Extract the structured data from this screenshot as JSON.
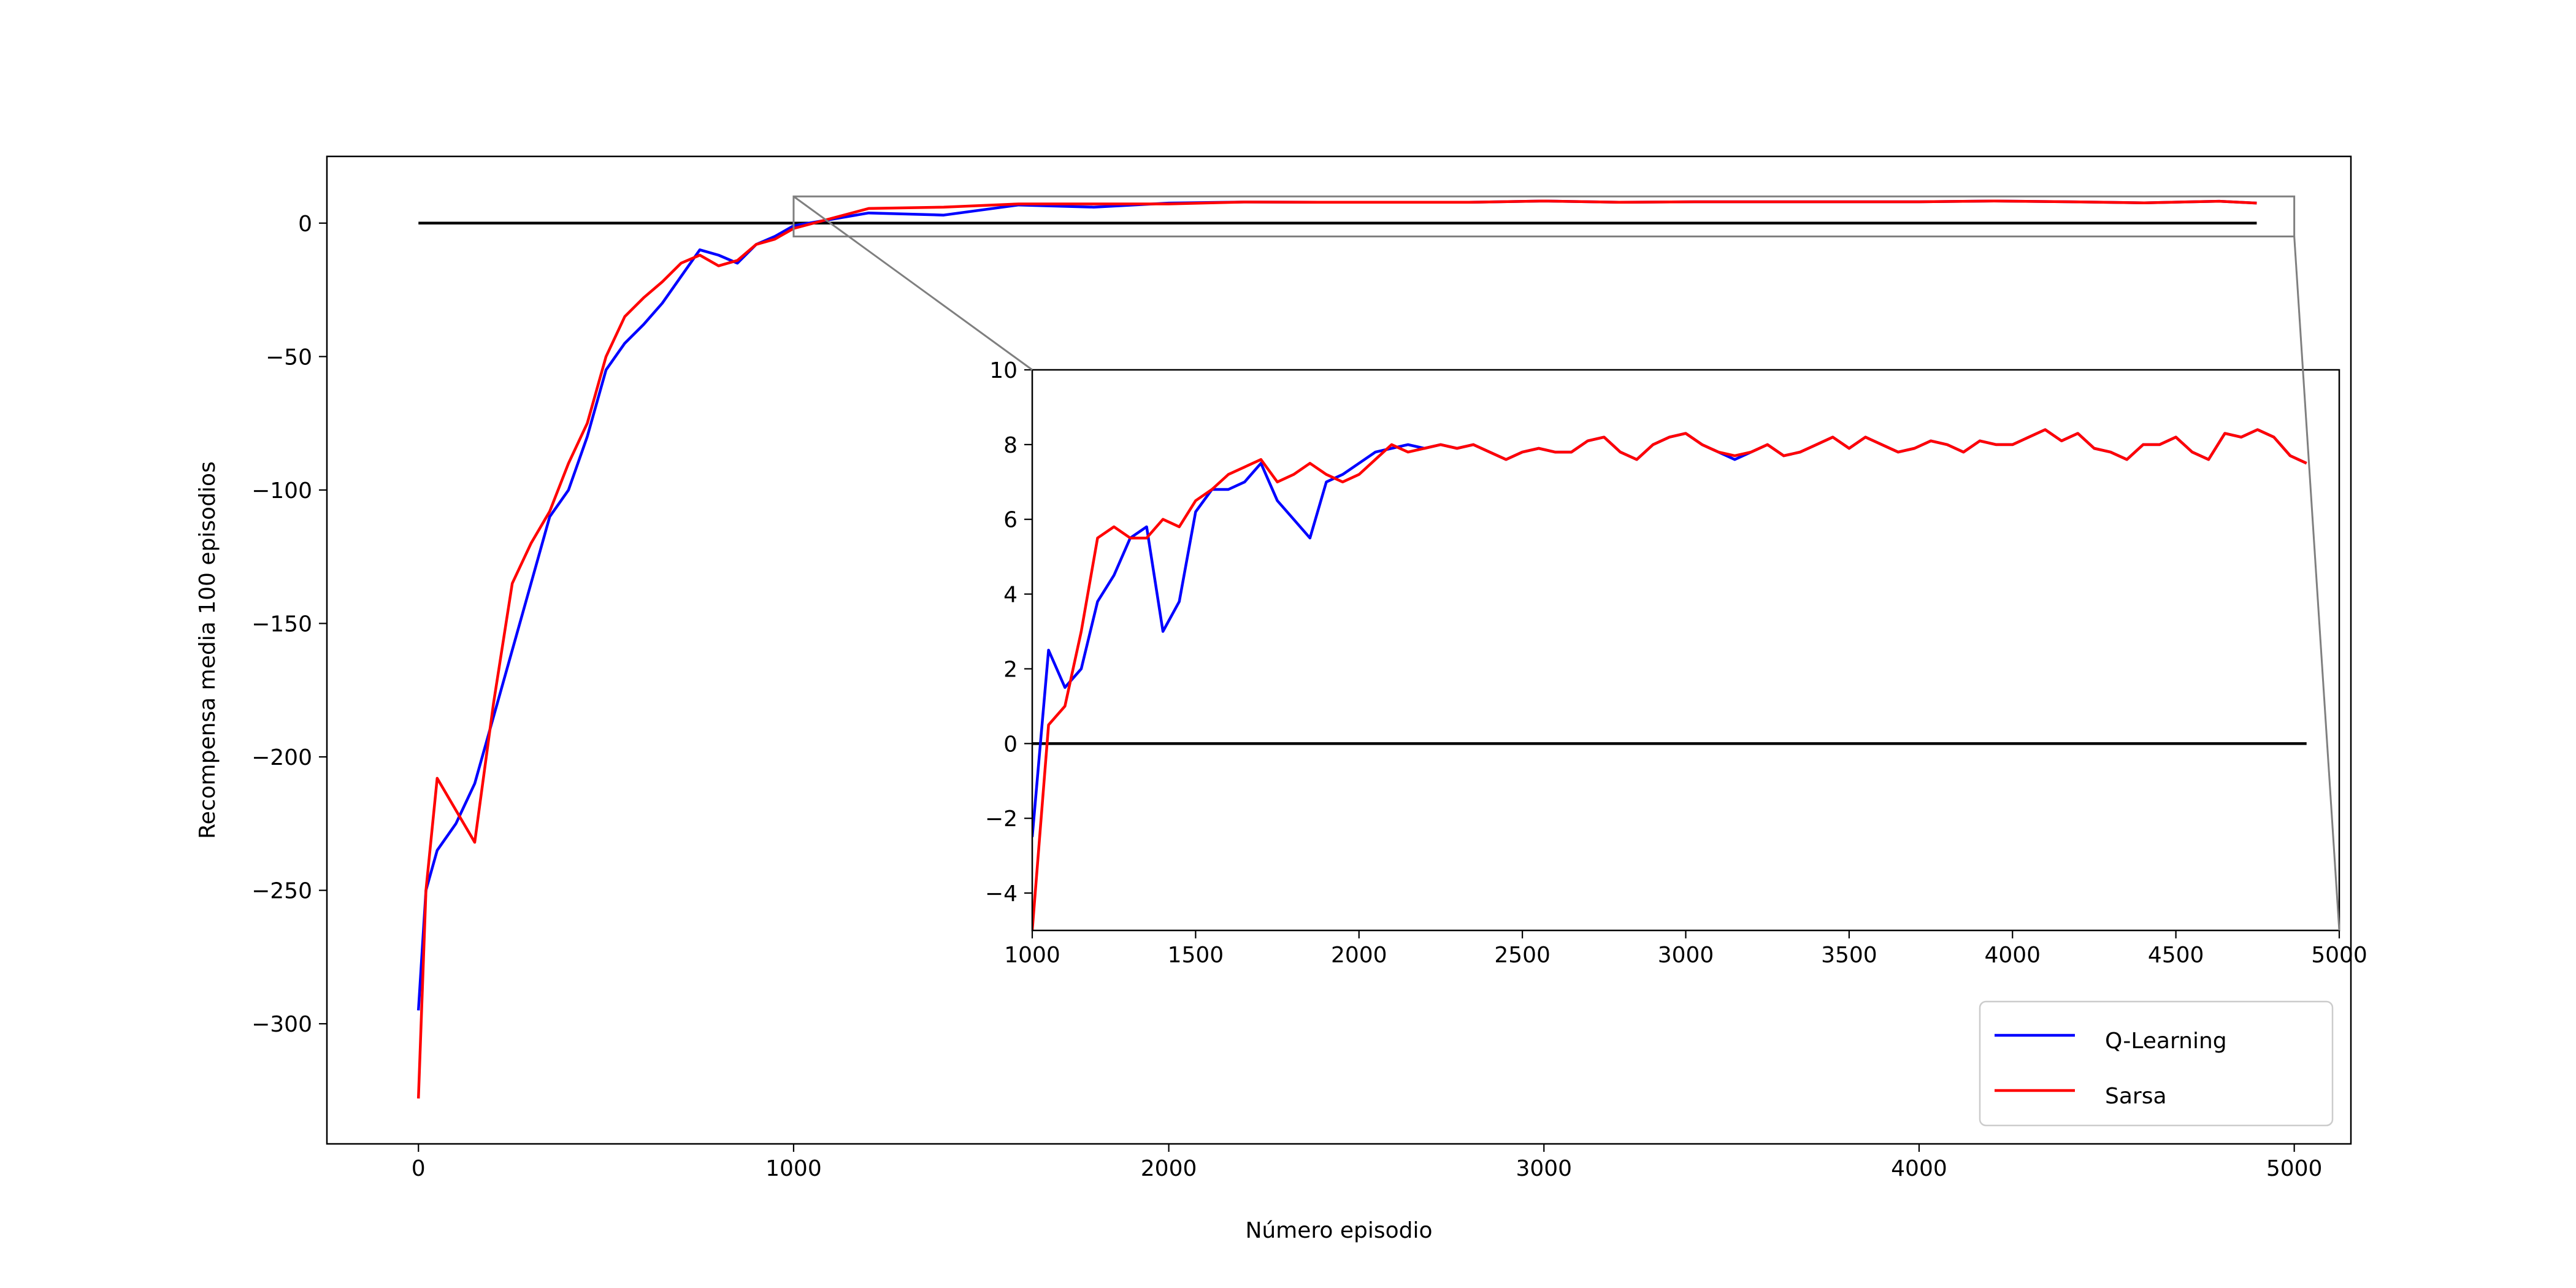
{
  "chart_data": [
    {
      "type": "line",
      "xlabel": "Número episodio",
      "ylabel": "Recompensa media 100 episodios",
      "x": [
        0,
        20,
        50,
        100,
        150,
        200,
        250,
        300,
        350,
        400,
        450,
        500,
        550,
        600,
        650,
        700,
        750,
        800,
        850,
        900,
        950,
        1000,
        1200,
        1400,
        1600,
        1800,
        2000,
        2200,
        2400,
        2600,
        2800,
        3000,
        3200,
        3400,
        3600,
        3800,
        4000,
        4200,
        4400,
        4600,
        4800,
        4900
      ],
      "series": [
        {
          "name": "Q-Learning",
          "color": "#0000ff",
          "values": [
            -295,
            -250,
            -235,
            -225,
            -210,
            -185,
            -160,
            -135,
            -110,
            -100,
            -80,
            -55,
            -45,
            -38,
            -30,
            -20,
            -10,
            -12,
            -15,
            -8,
            -5,
            -1,
            3.8,
            3,
            6.8,
            6,
            7.5,
            7.9,
            7.8,
            7.8,
            7.8,
            8.3,
            7.8,
            8,
            8,
            8,
            8,
            8.3,
            8,
            7.6,
            8.2,
            7.5
          ]
        },
        {
          "name": "Sarsa",
          "color": "#ff0000",
          "values": [
            -328,
            -250,
            -208,
            -220,
            -232,
            -180,
            -135,
            -120,
            -108,
            -90,
            -75,
            -50,
            -35,
            -28,
            -22,
            -15,
            -12,
            -16,
            -14,
            -8,
            -6,
            -2,
            5.5,
            6,
            7.2,
            7.2,
            7.2,
            7.9,
            7.8,
            7.8,
            7.8,
            8.3,
            7.8,
            8,
            8,
            8,
            8,
            8.3,
            8,
            7.6,
            8.2,
            7.5
          ]
        }
      ],
      "hline": {
        "y": 0,
        "xmin": 0,
        "xmax": 4900,
        "color": "#000000"
      },
      "xlim": [
        -244,
        5151
      ],
      "ylim": [
        -345,
        25
      ],
      "xticks": [
        0,
        1000,
        2000,
        3000,
        4000,
        5000
      ],
      "yticks": [
        0,
        {
          "value": -50,
          "label": "−50"
        },
        {
          "value": -100,
          "label": "−100"
        },
        {
          "value": -150,
          "label": "−150"
        },
        {
          "value": -200,
          "label": "−200"
        },
        {
          "value": -250,
          "label": "−250"
        },
        {
          "value": -300,
          "label": "−300"
        }
      ],
      "legend": "lower right",
      "grid": false
    },
    {
      "type": "line",
      "x": [
        1000,
        1050,
        1100,
        1150,
        1200,
        1250,
        1300,
        1350,
        1400,
        1450,
        1500,
        1550,
        1600,
        1650,
        1700,
        1750,
        1800,
        1850,
        1900,
        1950,
        2000,
        2050,
        2100,
        2150,
        2200,
        2250,
        2300,
        2350,
        2400,
        2450,
        2500,
        2550,
        2600,
        2650,
        2700,
        2750,
        2800,
        2850,
        2900,
        2950,
        3000,
        3050,
        3100,
        3150,
        3200,
        3250,
        3300,
        3350,
        3400,
        3450,
        3500,
        3550,
        3600,
        3650,
        3700,
        3750,
        3800,
        3850,
        3900,
        3950,
        4000,
        4050,
        4100,
        4150,
        4200,
        4250,
        4300,
        4350,
        4400,
        4450,
        4500,
        4550,
        4600,
        4650,
        4700,
        4750,
        4800,
        4850,
        4900
      ],
      "series": [
        {
          "color": "#0000ff",
          "values": [
            -2.5,
            2.5,
            1.5,
            2,
            3.8,
            4.5,
            5.5,
            5.8,
            3,
            3.8,
            6.2,
            6.8,
            6.8,
            7,
            7.5,
            6.5,
            6,
            5.5,
            7,
            7.2,
            7.5,
            7.8,
            7.9,
            8,
            7.9,
            8,
            7.9,
            8,
            7.8,
            7.6,
            7.8,
            7.9,
            7.8,
            7.8,
            8.1,
            8.2,
            7.8,
            7.6,
            8,
            8.2,
            8.3,
            8,
            7.8,
            7.6,
            7.8,
            8,
            7.7,
            7.8,
            8,
            8.2,
            7.9,
            8.2,
            8,
            7.8,
            7.9,
            8.1,
            8,
            7.8,
            8.1,
            8,
            8,
            8.2,
            8.4,
            8.1,
            8.3,
            7.9,
            7.8,
            7.6,
            8,
            8,
            8.2,
            7.8,
            7.6,
            8.3,
            8.2,
            8.4,
            8.2,
            7.7,
            7.5
          ]
        },
        {
          "color": "#ff0000",
          "values": [
            -5,
            0.5,
            1,
            3,
            5.5,
            5.8,
            5.5,
            5.5,
            6,
            5.8,
            6.5,
            6.8,
            7.2,
            7.4,
            7.6,
            7,
            7.2,
            7.5,
            7.2,
            7,
            7.2,
            7.6,
            8,
            7.8,
            7.9,
            8,
            7.9,
            8,
            7.8,
            7.6,
            7.8,
            7.9,
            7.8,
            7.8,
            8.1,
            8.2,
            7.8,
            7.6,
            8,
            8.2,
            8.3,
            8,
            7.8,
            7.7,
            7.8,
            8,
            7.7,
            7.8,
            8,
            8.2,
            7.9,
            8.2,
            8,
            7.8,
            7.9,
            8.1,
            8,
            7.8,
            8.1,
            8,
            8,
            8.2,
            8.4,
            8.1,
            8.3,
            7.9,
            7.8,
            7.6,
            8,
            8,
            8.2,
            7.8,
            7.6,
            8.3,
            8.2,
            8.4,
            8.2,
            7.7,
            7.5
          ]
        }
      ],
      "hline": {
        "y": 0,
        "xmin": 1000,
        "xmax": 4900,
        "color": "#000000"
      },
      "xlim": [
        1000,
        5000
      ],
      "ylim": [
        -5,
        10
      ],
      "xticks": [
        1000,
        1500,
        2000,
        2500,
        3000,
        3500,
        4000,
        4500,
        5000
      ],
      "yticks": [
        {
          "value": -4,
          "label": "−4"
        },
        {
          "value": -2,
          "label": "−2"
        },
        0,
        2,
        4,
        6,
        8,
        10
      ],
      "grid": false
    }
  ]
}
